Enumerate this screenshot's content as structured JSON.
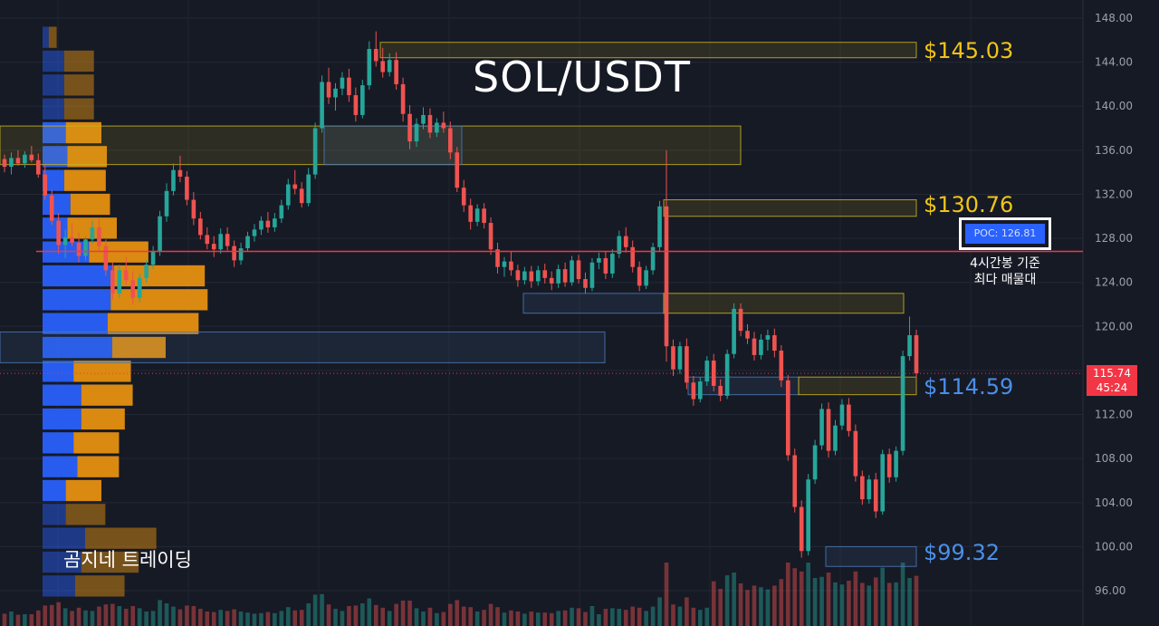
{
  "title": "SOL/USDT",
  "watermark": "곰지네 트레이딩",
  "levels": [
    {
      "key": "r1",
      "label": "$145.03",
      "color": "#f0c419"
    },
    {
      "key": "r2",
      "label": "$130.76",
      "color": "#f0c419"
    },
    {
      "key": "s1",
      "label": "$114.59",
      "color": "#4a8fe8"
    },
    {
      "key": "s2",
      "label": "$99.32",
      "color": "#4a8fe8"
    }
  ],
  "poc": {
    "label": "POC: 126.81",
    "note_line1": "4시간봉 기준",
    "note_line2": "최다 매물대"
  },
  "last_price": {
    "value": "115.74",
    "countdown": "45:24"
  },
  "colors": {
    "background": "#161a25",
    "up": "#26a69a",
    "down": "#ef5350",
    "poc_line": "#f23645",
    "vp_buy": "#2962ff",
    "vp_sell": "#f0960f",
    "zone_yellow": "#c8b41e",
    "zone_blue": "#4a78b4"
  },
  "chart_data": {
    "type": "candlestick",
    "ylim": [
      94,
      149
    ],
    "y_ticks": [
      "148.00",
      "144.00",
      "140.00",
      "136.00",
      "132.00",
      "128.00",
      "124.00",
      "120.00",
      "116.00",
      "112.00",
      "108.00",
      "104.00",
      "100.00",
      "96.00"
    ],
    "poc_value": 126.81,
    "last_price": 115.74,
    "resistance_supports": [
      145.03,
      130.76,
      114.59,
      99.32
    ],
    "zones": [
      {
        "from": 145.8,
        "to": 144.4,
        "color": "yellow"
      },
      {
        "from": 138.2,
        "to": 134.7,
        "color": "yellow"
      },
      {
        "from": 138.2,
        "to": 134.7,
        "color": "blue"
      },
      {
        "from": 131.5,
        "to": 130.0,
        "color": "yellow"
      },
      {
        "from": 123.0,
        "to": 121.2,
        "color": "blue"
      },
      {
        "from": 123.0,
        "to": 121.2,
        "color": "yellow"
      },
      {
        "from": 119.5,
        "to": 116.7,
        "color": "blue"
      },
      {
        "from": 115.4,
        "to": 113.8,
        "color": "blue"
      },
      {
        "from": 115.4,
        "to": 113.8,
        "color": "yellow"
      },
      {
        "from": 100.0,
        "to": 98.2,
        "color": "blue"
      }
    ],
    "candles": [
      [
        135.2,
        135.6,
        134.0,
        134.5
      ],
      [
        134.5,
        135.8,
        133.8,
        135.3
      ],
      [
        135.3,
        136.0,
        134.6,
        134.8
      ],
      [
        134.8,
        135.9,
        134.4,
        135.6
      ],
      [
        135.6,
        136.4,
        134.9,
        135.1
      ],
      [
        135.1,
        135.7,
        133.5,
        133.8
      ],
      [
        133.8,
        134.6,
        131.5,
        131.9
      ],
      [
        131.9,
        132.4,
        129.2,
        129.6
      ],
      [
        129.6,
        130.3,
        126.6,
        127.4
      ],
      [
        127.4,
        128.8,
        126.2,
        128.1
      ],
      [
        128.1,
        129.4,
        127.3,
        127.6
      ],
      [
        127.6,
        128.5,
        125.8,
        126.4
      ],
      [
        126.4,
        128.2,
        126.0,
        127.9
      ],
      [
        127.9,
        129.6,
        127.5,
        129.0
      ],
      [
        129.0,
        129.8,
        126.9,
        127.3
      ],
      [
        127.3,
        127.9,
        124.6,
        125.1
      ],
      [
        125.1,
        125.8,
        122.4,
        123.0
      ],
      [
        123.0,
        125.6,
        122.6,
        125.1
      ],
      [
        125.1,
        126.3,
        123.8,
        124.2
      ],
      [
        124.2,
        125.0,
        122.0,
        122.6
      ],
      [
        122.6,
        124.8,
        122.2,
        124.4
      ],
      [
        124.4,
        126.0,
        124.0,
        125.6
      ],
      [
        125.6,
        127.3,
        125.2,
        126.8
      ],
      [
        126.8,
        130.5,
        126.4,
        130.0
      ],
      [
        130.0,
        133.0,
        129.5,
        132.3
      ],
      [
        132.3,
        134.8,
        131.9,
        134.2
      ],
      [
        134.2,
        135.5,
        133.1,
        133.6
      ],
      [
        133.6,
        134.1,
        131.0,
        131.5
      ],
      [
        131.5,
        132.2,
        129.2,
        129.8
      ],
      [
        129.8,
        130.4,
        127.9,
        128.3
      ],
      [
        128.3,
        129.0,
        127.0,
        127.5
      ],
      [
        127.5,
        128.2,
        126.3,
        127.0
      ],
      [
        127.0,
        128.9,
        126.6,
        128.4
      ],
      [
        128.4,
        129.0,
        126.9,
        127.3
      ],
      [
        127.3,
        127.8,
        125.4,
        126.0
      ],
      [
        126.0,
        127.6,
        125.6,
        127.1
      ],
      [
        127.1,
        128.6,
        126.8,
        128.2
      ],
      [
        128.2,
        129.3,
        127.7,
        128.8
      ],
      [
        128.8,
        130.0,
        128.3,
        129.6
      ],
      [
        129.6,
        130.4,
        128.5,
        129.0
      ],
      [
        129.0,
        130.3,
        128.6,
        129.8
      ],
      [
        129.8,
        131.5,
        129.4,
        131.0
      ],
      [
        131.0,
        133.4,
        130.6,
        132.9
      ],
      [
        132.9,
        134.2,
        132.0,
        132.5
      ],
      [
        132.5,
        133.1,
        130.8,
        131.2
      ],
      [
        131.2,
        134.4,
        130.9,
        133.8
      ],
      [
        133.8,
        138.5,
        133.4,
        138.0
      ],
      [
        138.0,
        142.8,
        137.6,
        142.2
      ],
      [
        142.2,
        143.5,
        140.2,
        140.8
      ],
      [
        140.8,
        142.1,
        139.6,
        141.6
      ],
      [
        141.6,
        143.1,
        141.0,
        142.6
      ],
      [
        142.6,
        143.4,
        140.4,
        141.0
      ],
      [
        141.0,
        141.7,
        138.6,
        139.2
      ],
      [
        139.2,
        142.4,
        138.9,
        141.9
      ],
      [
        141.9,
        145.9,
        141.5,
        145.2
      ],
      [
        145.2,
        146.8,
        143.6,
        144.1
      ],
      [
        144.1,
        145.3,
        142.6,
        143.1
      ],
      [
        143.1,
        144.8,
        142.7,
        144.2
      ],
      [
        144.2,
        144.9,
        141.5,
        142.0
      ],
      [
        142.0,
        142.6,
        138.6,
        139.3
      ],
      [
        139.3,
        140.1,
        136.1,
        136.8
      ],
      [
        136.8,
        138.9,
        136.3,
        138.4
      ],
      [
        138.4,
        139.9,
        137.9,
        139.2
      ],
      [
        139.2,
        139.8,
        137.1,
        137.6
      ],
      [
        137.6,
        138.9,
        137.2,
        138.5
      ],
      [
        138.5,
        139.5,
        137.6,
        138.0
      ],
      [
        138.0,
        138.6,
        135.2,
        135.8
      ],
      [
        135.8,
        136.3,
        132.2,
        132.6
      ],
      [
        132.6,
        133.3,
        130.4,
        131.0
      ],
      [
        131.0,
        131.6,
        128.8,
        129.5
      ],
      [
        129.5,
        131.1,
        129.1,
        130.7
      ],
      [
        130.7,
        131.2,
        128.9,
        129.4
      ],
      [
        129.4,
        129.9,
        126.5,
        127.0
      ],
      [
        127.0,
        127.6,
        124.8,
        125.4
      ],
      [
        125.4,
        126.3,
        124.5,
        125.9
      ],
      [
        125.9,
        126.8,
        124.6,
        125.1
      ],
      [
        125.1,
        125.6,
        123.6,
        124.2
      ],
      [
        124.2,
        125.4,
        123.8,
        125.0
      ],
      [
        125.0,
        125.5,
        123.5,
        124.1
      ],
      [
        124.1,
        125.5,
        123.7,
        125.1
      ],
      [
        125.1,
        125.7,
        123.9,
        124.4
      ],
      [
        124.4,
        125.0,
        123.3,
        123.9
      ],
      [
        123.9,
        125.6,
        123.5,
        125.2
      ],
      [
        125.2,
        125.8,
        123.6,
        124.0
      ],
      [
        124.0,
        126.4,
        123.7,
        126.0
      ],
      [
        126.0,
        126.5,
        123.9,
        124.3
      ],
      [
        124.3,
        124.9,
        123.0,
        123.5
      ],
      [
        123.5,
        126.2,
        123.2,
        125.8
      ],
      [
        125.8,
        126.7,
        125.2,
        126.2
      ],
      [
        126.2,
        126.8,
        124.3,
        124.8
      ],
      [
        124.8,
        127.0,
        124.4,
        126.6
      ],
      [
        126.6,
        128.7,
        126.2,
        128.2
      ],
      [
        128.2,
        129.0,
        126.7,
        127.2
      ],
      [
        127.2,
        127.8,
        124.9,
        125.4
      ],
      [
        125.4,
        125.9,
        123.2,
        123.7
      ],
      [
        123.7,
        125.5,
        123.4,
        125.1
      ],
      [
        125.1,
        127.6,
        124.7,
        127.2
      ],
      [
        127.2,
        131.4,
        126.8,
        130.9
      ],
      [
        130.9,
        136.0,
        116.8,
        118.2
      ],
      [
        118.2,
        118.8,
        115.5,
        116.1
      ],
      [
        116.1,
        118.6,
        115.7,
        118.2
      ],
      [
        118.2,
        118.9,
        114.3,
        114.9
      ],
      [
        114.9,
        115.5,
        112.8,
        113.4
      ],
      [
        113.4,
        115.4,
        113.1,
        115.0
      ],
      [
        115.0,
        117.3,
        114.6,
        116.9
      ],
      [
        116.9,
        117.5,
        114.1,
        114.6
      ],
      [
        114.6,
        115.2,
        113.2,
        113.7
      ],
      [
        113.7,
        117.9,
        113.4,
        117.5
      ],
      [
        117.5,
        122.1,
        117.1,
        121.6
      ],
      [
        121.6,
        122.1,
        119.1,
        119.6
      ],
      [
        119.6,
        120.2,
        118.4,
        118.9
      ],
      [
        118.9,
        119.5,
        116.9,
        117.4
      ],
      [
        117.4,
        119.3,
        117.0,
        118.8
      ],
      [
        118.8,
        119.7,
        117.8,
        119.2
      ],
      [
        119.2,
        119.8,
        117.2,
        117.8
      ],
      [
        117.8,
        118.3,
        114.5,
        115.1
      ],
      [
        115.1,
        115.6,
        107.8,
        108.3
      ],
      [
        108.3,
        108.9,
        103.1,
        103.6
      ],
      [
        103.6,
        104.2,
        99.0,
        99.6
      ],
      [
        99.6,
        106.6,
        99.2,
        106.1
      ],
      [
        106.1,
        109.7,
        105.7,
        109.2
      ],
      [
        109.2,
        113.0,
        108.8,
        112.5
      ],
      [
        112.5,
        113.1,
        108.1,
        108.7
      ],
      [
        108.7,
        111.5,
        108.3,
        111.0
      ],
      [
        111.0,
        113.4,
        110.6,
        112.9
      ],
      [
        112.9,
        113.5,
        110.0,
        110.5
      ],
      [
        110.5,
        111.1,
        105.9,
        106.4
      ],
      [
        106.4,
        106.9,
        103.8,
        104.3
      ],
      [
        104.3,
        106.5,
        103.9,
        106.1
      ],
      [
        106.1,
        106.7,
        102.6,
        103.2
      ],
      [
        103.2,
        108.8,
        102.9,
        108.4
      ],
      [
        108.4,
        108.9,
        105.8,
        106.3
      ],
      [
        106.3,
        109.1,
        105.9,
        108.7
      ],
      [
        108.7,
        117.8,
        108.3,
        117.3
      ],
      [
        117.3,
        120.9,
        116.9,
        119.2
      ],
      [
        119.2,
        119.7,
        115.3,
        115.74
      ]
    ]
  }
}
